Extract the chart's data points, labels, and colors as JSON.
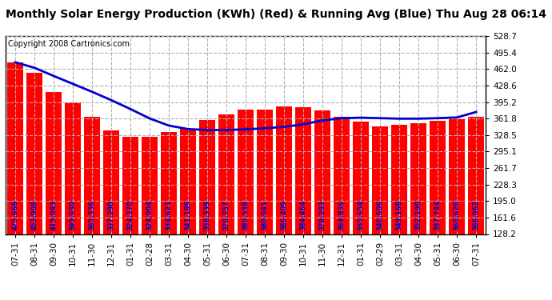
{
  "title": "Monthly Solar Energy Production (KWh) (Red) & Running Avg (Blue) Thu Aug 28 06:14",
  "copyright": "Copyright 2008 Cartronics.com",
  "bar_values": [
    475.668,
    453.908,
    415.043,
    395.03,
    365.336,
    337.29,
    324.37,
    324.004,
    334.621,
    341.189,
    358.339,
    370.757,
    380.538,
    380.041,
    386.409,
    384.464,
    378.293,
    364.836,
    355.654,
    346.606,
    349.168,
    352.19,
    357.744,
    360.62,
    366.062
  ],
  "avg_values": [
    475.668,
    464.5,
    448.0,
    432.0,
    416.0,
    399.0,
    381.0,
    362.0,
    347.5,
    340.5,
    338.5,
    338.5,
    340.0,
    342.0,
    345.0,
    350.0,
    358.0,
    362.5,
    363.5,
    362.5,
    361.5,
    361.5,
    362.5,
    364.0,
    375.0
  ],
  "x_labels": [
    "07-31",
    "08-31",
    "09-30",
    "10-31",
    "11-30",
    "12-31",
    "01-31",
    "02-28",
    "03-31",
    "04-30",
    "05-31",
    "06-30",
    "07-31",
    "08-31",
    "09-30",
    "10-31",
    "11-30",
    "12-31",
    "01-31",
    "02-29",
    "03-31",
    "04-30",
    "05-31",
    "06-30",
    "07-31"
  ],
  "bar_color": "#ff0000",
  "avg_color": "#0000cc",
  "bg_color": "#ffffff",
  "title_color": "#000000",
  "copyright_color": "#000000",
  "grid_color": "#b0b0b0",
  "label_color": "#0000cc",
  "ylabel_values": [
    528.7,
    495.4,
    462.0,
    428.6,
    395.2,
    361.8,
    328.5,
    295.1,
    261.7,
    228.3,
    195.0,
    161.6,
    128.2
  ],
  "ylim_min": 128.2,
  "ylim_max": 528.7,
  "title_fontsize": 10,
  "copyright_fontsize": 7,
  "bar_label_fontsize": 6,
  "tick_fontsize": 7.5
}
